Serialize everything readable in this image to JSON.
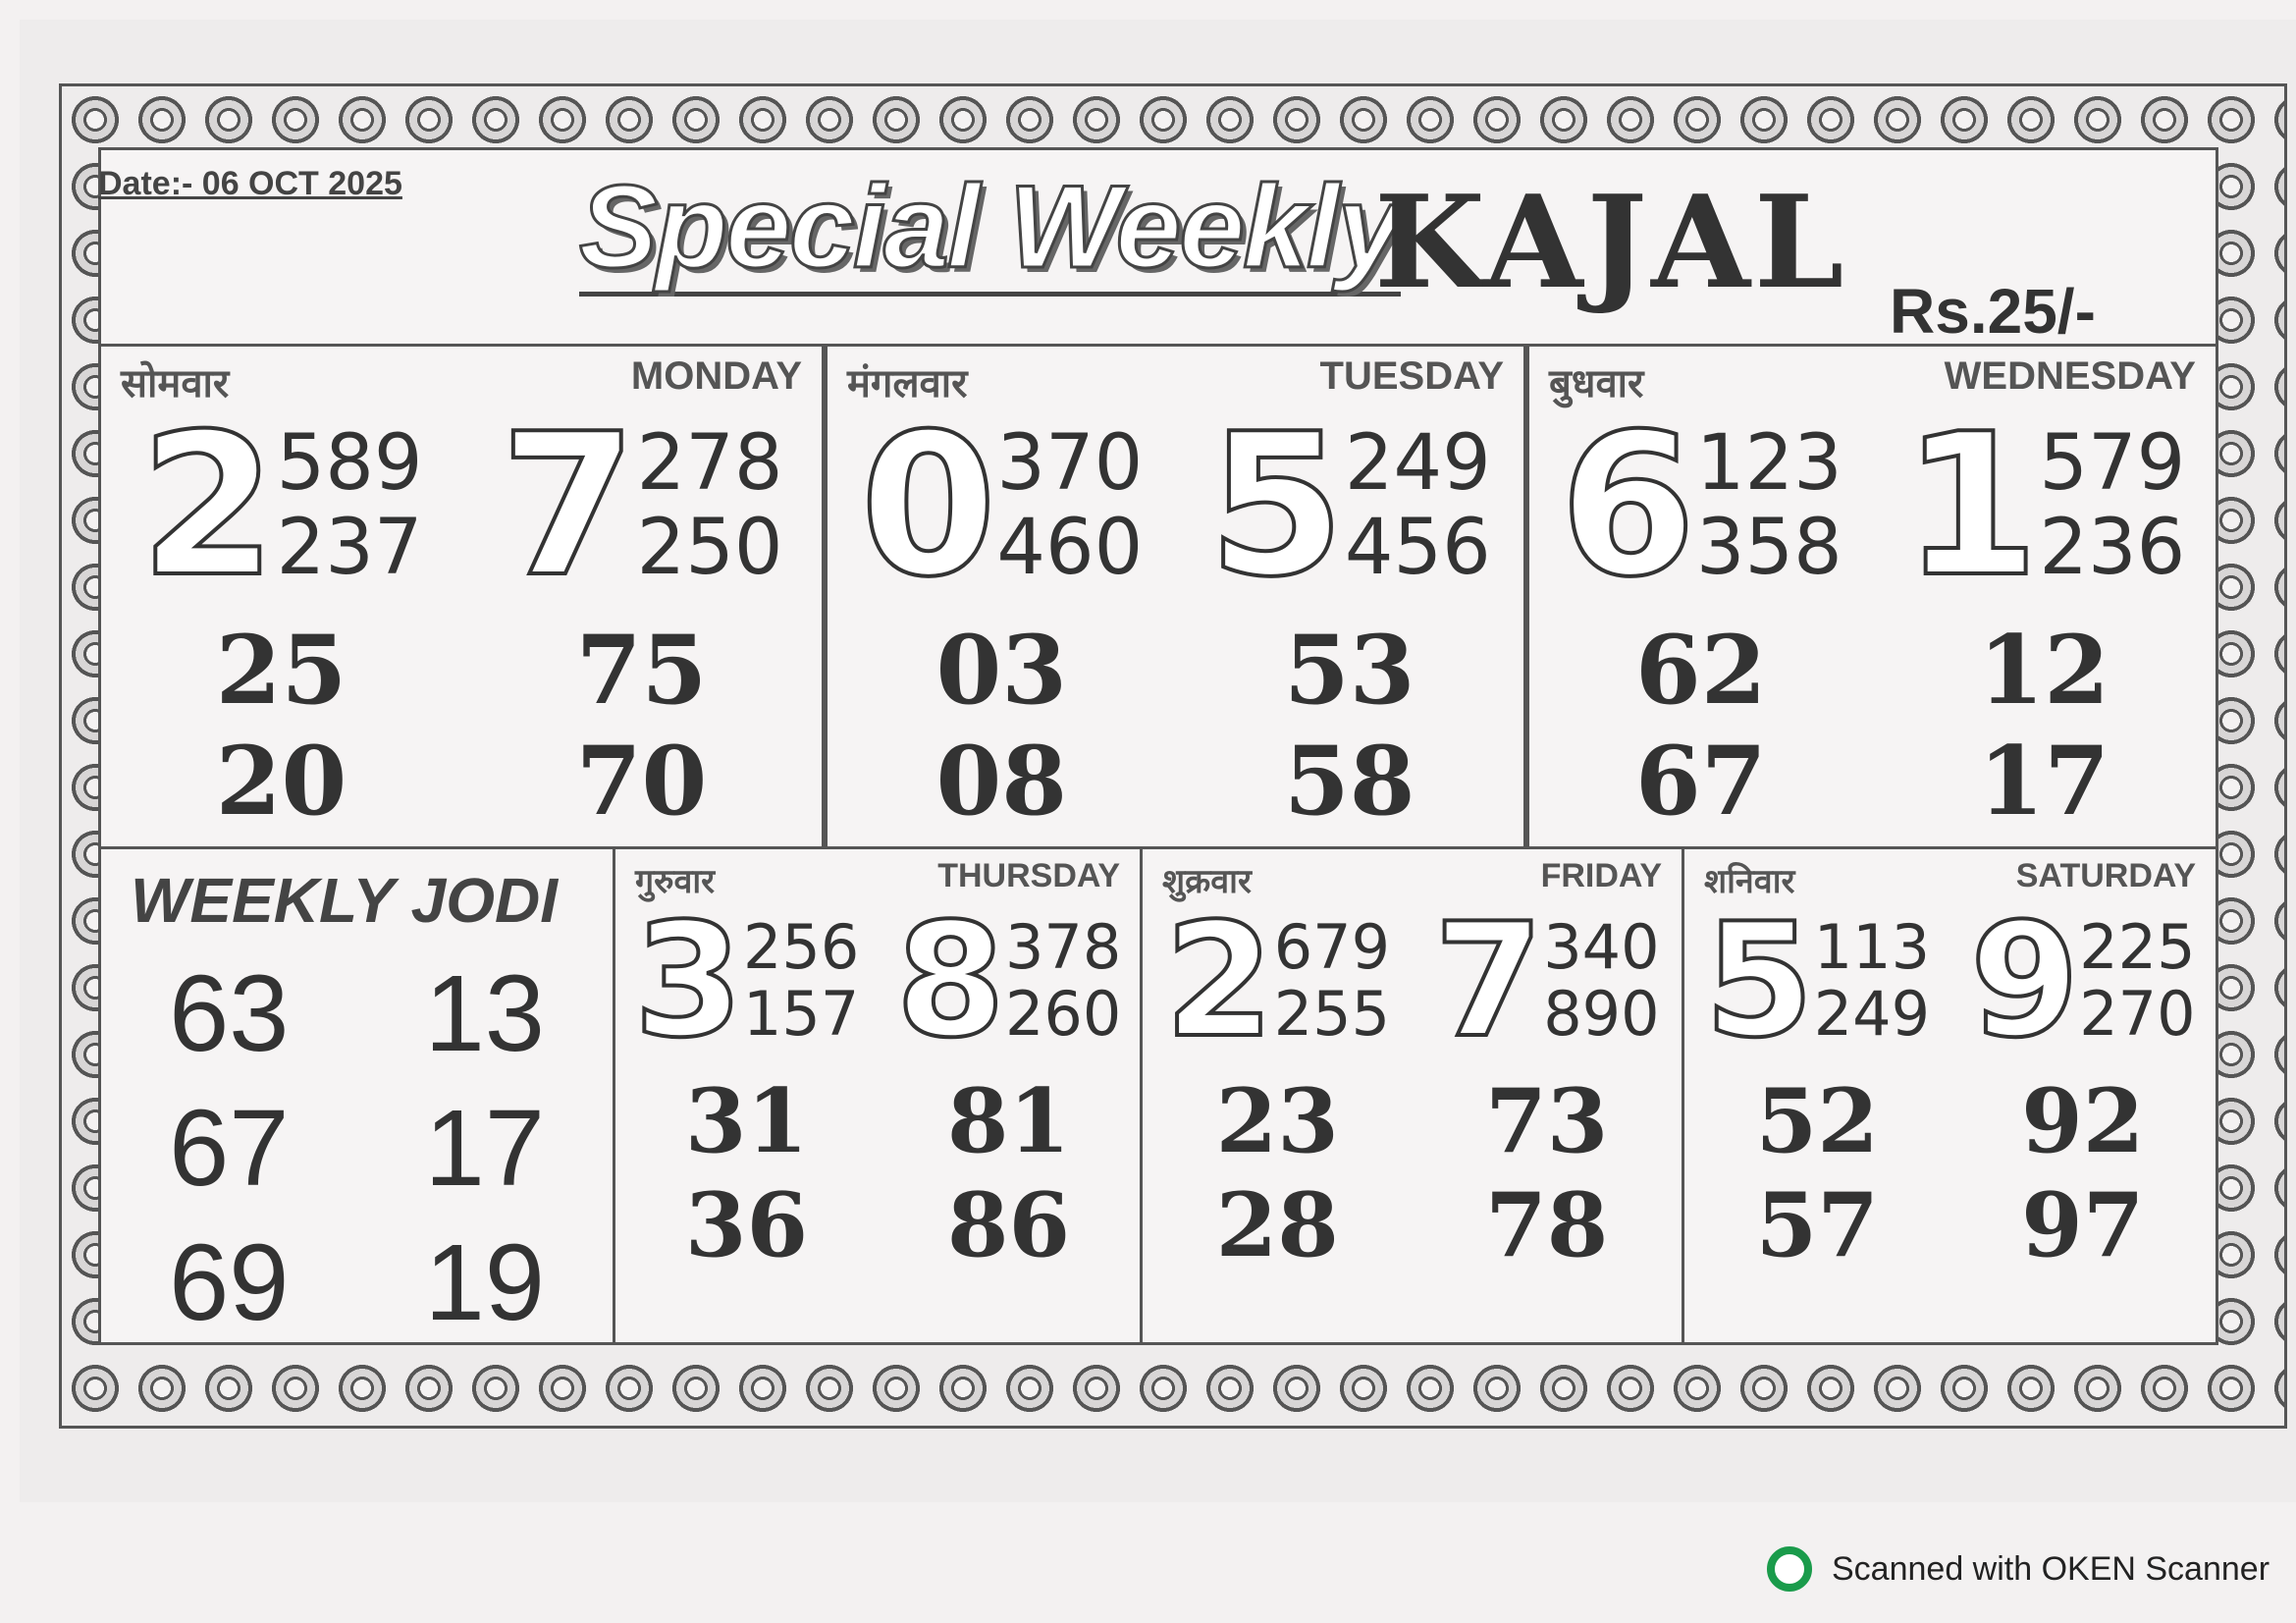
{
  "header": {
    "date": "Date:- 06 OCT 2025",
    "title": "Special Weekly",
    "brand": "KAJAL",
    "price": "Rs.25/-"
  },
  "days": [
    {
      "hindi": "सोमवार",
      "english": "MONDAY",
      "panels": [
        {
          "digit": "2",
          "pannas": [
            "589",
            "237"
          ]
        },
        {
          "digit": "7",
          "pannas": [
            "278",
            "250"
          ]
        }
      ],
      "jodis": [
        [
          "25",
          "75"
        ],
        [
          "20",
          "70"
        ]
      ]
    },
    {
      "hindi": "मंगलवार",
      "english": "TUESDAY",
      "panels": [
        {
          "digit": "0",
          "pannas": [
            "370",
            "460"
          ]
        },
        {
          "digit": "5",
          "pannas": [
            "249",
            "456"
          ]
        }
      ],
      "jodis": [
        [
          "03",
          "53"
        ],
        [
          "08",
          "58"
        ]
      ]
    },
    {
      "hindi": "बुधवार",
      "english": "WEDNESDAY",
      "panels": [
        {
          "digit": "6",
          "pannas": [
            "123",
            "358"
          ]
        },
        {
          "digit": "1",
          "pannas": [
            "579",
            "236"
          ]
        }
      ],
      "jodis": [
        [
          "62",
          "12"
        ],
        [
          "67",
          "17"
        ]
      ]
    },
    {
      "hindi": "गुरुवार",
      "english": "THURSDAY",
      "panels": [
        {
          "digit": "3",
          "pannas": [
            "256",
            "157"
          ]
        },
        {
          "digit": "8",
          "pannas": [
            "378",
            "260"
          ]
        }
      ],
      "jodis": [
        [
          "31",
          "81"
        ],
        [
          "36",
          "86"
        ]
      ]
    },
    {
      "hindi": "शुक्रवार",
      "english": "FRIDAY",
      "panels": [
        {
          "digit": "2",
          "pannas": [
            "679",
            "255"
          ]
        },
        {
          "digit": "7",
          "pannas": [
            "340",
            "890"
          ]
        }
      ],
      "jodis": [
        [
          "23",
          "73"
        ],
        [
          "28",
          "78"
        ]
      ]
    },
    {
      "hindi": "शनिवार",
      "english": "SATURDAY",
      "panels": [
        {
          "digit": "5",
          "pannas": [
            "113",
            "249"
          ]
        },
        {
          "digit": "9",
          "pannas": [
            "225",
            "270"
          ]
        }
      ],
      "jodis": [
        [
          "52",
          "92"
        ],
        [
          "57",
          "97"
        ]
      ]
    }
  ],
  "weekly_jodi": {
    "title": "WEEKLY JODI",
    "values": [
      [
        "63",
        "13"
      ],
      [
        "67",
        "17"
      ],
      [
        "69",
        "19"
      ]
    ]
  },
  "footer": {
    "text": "Scanned with OKEN Scanner"
  }
}
